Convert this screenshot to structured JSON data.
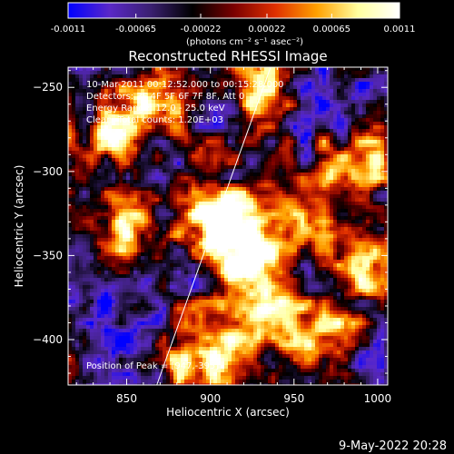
{
  "colorbar": {
    "tick_labels": [
      "-0.0011",
      "-0.00065",
      "-0.00022",
      "0.00022",
      "0.00065",
      "0.0011"
    ],
    "ticks": [
      -0.0011,
      -0.00065,
      -0.00022,
      0.00022,
      0.00065,
      0.0011
    ],
    "range": [
      -0.0011,
      0.0011
    ],
    "units_label": "(photons cm⁻² s⁻¹ asec⁻²)",
    "colors": [
      "#0000ff",
      "#5a28c8",
      "#3a2070",
      "#000000",
      "#7a0000",
      "#e03000",
      "#ffa000",
      "#ffffa0",
      "#ffffff"
    ]
  },
  "chart_data": {
    "type": "heatmap",
    "title": "Reconstructed RHESSI Image",
    "xlabel": "Heliocentric X (arcsec)",
    "ylabel": "Heliocentric Y (arcsec)",
    "xlim": [
      815,
      1006
    ],
    "ylim": [
      -427,
      -238
    ],
    "x_ticks": [
      850,
      900,
      950,
      1000
    ],
    "y_ticks": [
      -250,
      -300,
      -350,
      -400
    ],
    "x_tick_labels": [
      "850",
      "900",
      "950",
      "1000"
    ],
    "y_tick_labels": [
      "−250",
      "−300",
      "−350",
      "−400"
    ],
    "limb_line": {
      "x": [
        868,
        936
      ],
      "y": [
        -427,
        -238
      ],
      "color": "#ffffff"
    },
    "info_lines": [
      "10-Mar-2011 00:12:52.000 to 00:15:28.000",
      "Detectors: 3F 4F 5F 6F 7F 8F, Att 0",
      "Energy Range: 12.0 - 25.0 keV",
      "Clean. Total counts: 1.20E+03"
    ],
    "peak_label": "Position of Peak = [",
    "peak_value": "947,-395]",
    "peak_position": [
      947,
      -395
    ],
    "bright_regions": [
      {
        "x": 905,
        "y": -327,
        "peak": 1.0
      },
      {
        "x": 915,
        "y": -355,
        "peak": 0.85
      },
      {
        "x": 930,
        "y": -385,
        "peak": 0.9
      },
      {
        "x": 895,
        "y": -410,
        "peak": 0.85
      },
      {
        "x": 985,
        "y": -300,
        "peak": 0.8
      },
      {
        "x": 970,
        "y": -400,
        "peak": 0.75
      },
      {
        "x": 850,
        "y": -330,
        "peak": 0.75
      },
      {
        "x": 840,
        "y": -280,
        "peak": 0.7
      },
      {
        "x": 930,
        "y": -250,
        "peak": 0.7
      },
      {
        "x": 995,
        "y": -355,
        "peak": 0.7
      },
      {
        "x": 870,
        "y": -260,
        "peak": 0.6
      },
      {
        "x": 945,
        "y": -330,
        "peak": 0.65
      }
    ],
    "dark_regions": [
      {
        "x": 960,
        "y": -255,
        "depth": 0.7
      },
      {
        "x": 845,
        "y": -395,
        "depth": 0.5
      },
      {
        "x": 880,
        "y": -365,
        "depth": 0.45
      },
      {
        "x": 985,
        "y": -405,
        "depth": 0.4
      },
      {
        "x": 870,
        "y": -300,
        "depth": 0.35
      }
    ]
  },
  "footer": {
    "date": "9-May-2022 20:28"
  }
}
